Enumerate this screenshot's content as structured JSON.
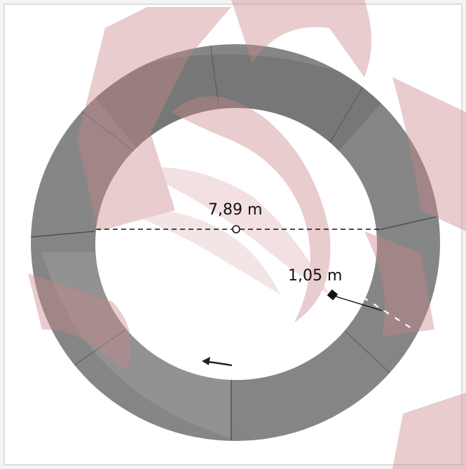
{
  "diagram": {
    "inner_diameter_label": "7,89 m",
    "ring_width_label": "1,05 m"
  },
  "colors": {
    "background": "#f4f4f4",
    "ring_gray": "#8f8f8f",
    "ring_dark": "#6b6b6b",
    "watermark": "#c9868a",
    "annotation": "#111111"
  },
  "icons": {
    "center_mark": "circle-marker",
    "direction_arrow": "arrow-left",
    "measure_endpoint": "diamond-marker"
  }
}
